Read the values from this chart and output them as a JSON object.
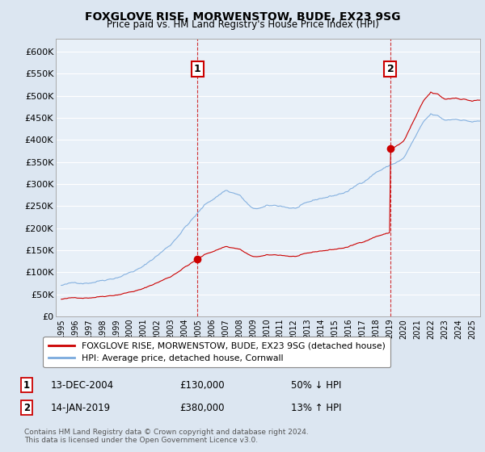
{
  "title": "FOXGLOVE RISE, MORWENSTOW, BUDE, EX23 9SG",
  "subtitle": "Price paid vs. HM Land Registry's House Price Index (HPI)",
  "outer_bg": "#dce6f1",
  "plot_bg": "#e8f0f8",
  "grid_color": "#ffffff",
  "ylabel_ticks": [
    "£0",
    "£50K",
    "£100K",
    "£150K",
    "£200K",
    "£250K",
    "£300K",
    "£350K",
    "£400K",
    "£450K",
    "£500K",
    "£550K",
    "£600K"
  ],
  "ytick_values": [
    0,
    50000,
    100000,
    150000,
    200000,
    250000,
    300000,
    350000,
    400000,
    450000,
    500000,
    550000,
    600000
  ],
  "ylim": [
    0,
    630000
  ],
  "sale1_x": 2004.958,
  "sale1_y": 130000,
  "sale1_label": "1",
  "sale1_date": "13-DEC-2004",
  "sale1_price": "£130,000",
  "sale1_pct": "50% ↓ HPI",
  "sale2_x": 2019.042,
  "sale2_y": 380000,
  "sale2_label": "2",
  "sale2_date": "14-JAN-2019",
  "sale2_price": "£380,000",
  "sale2_pct": "13% ↑ HPI",
  "legend_label_red": "FOXGLOVE RISE, MORWENSTOW, BUDE, EX23 9SG (detached house)",
  "legend_label_blue": "HPI: Average price, detached house, Cornwall",
  "footer": "Contains HM Land Registry data © Crown copyright and database right 2024.\nThis data is licensed under the Open Government Licence v3.0.",
  "red_color": "#cc0000",
  "blue_color": "#7aaadd",
  "vline_color": "#cc0000",
  "xmin": 1995,
  "xmax": 2025
}
